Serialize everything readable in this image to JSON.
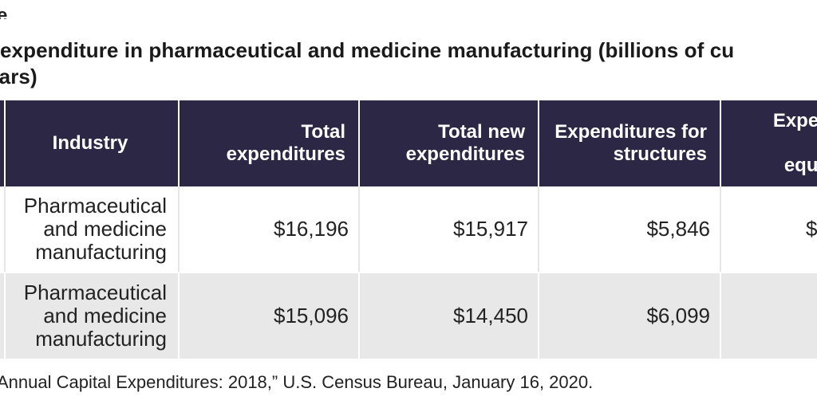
{
  "heading_fragment": "e",
  "title": {
    "line1": "expenditure in pharmaceutical and medicine manufacturing (billions of cu",
    "line2": "llars)"
  },
  "table": {
    "headers": {
      "industry": "Industry",
      "total_expenditures": "Total expenditures",
      "total_new_expenditures": "Total new expenditures",
      "structures": "Expenditures for structures",
      "equipment_line1": "Expendit",
      "equipment_line2": "equipr"
    },
    "rows": [
      {
        "industry": "Pharmaceutical and medicine manufacturing",
        "total_expenditures": "$16,196",
        "total_new_expenditures": "$15,917",
        "structures": "$5,846",
        "equipment": "$"
      },
      {
        "industry": "Pharmaceutical and medicine manufacturing",
        "total_expenditures": "$15,096",
        "total_new_expenditures": "$14,450",
        "structures": "$6,099",
        "equipment": ""
      }
    ]
  },
  "source": "Annual Capital Expenditures: 2018,” U.S. Census Bureau, January 16, 2020."
}
